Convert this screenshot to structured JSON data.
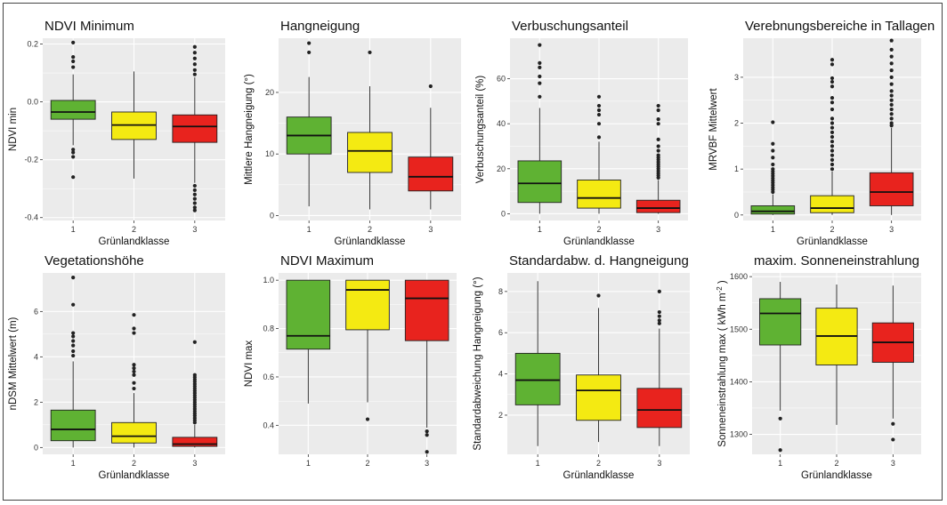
{
  "colors": {
    "k1": "#5fb233",
    "k2": "#f4ea12",
    "k3": "#e8231e",
    "panel_bg": "#ebebeb",
    "grid": "#ffffff"
  },
  "chart_data": [
    {
      "type": "box",
      "title": "NDVI Minimum",
      "xlabel": "Grünlandklasse",
      "ylabel": "NDVI min",
      "categories": [
        "1",
        "2",
        "3"
      ],
      "ylim": [
        -0.41,
        0.22
      ],
      "yticks": [
        -0.4,
        -0.2,
        0.0,
        0.2
      ],
      "yticklabels": [
        "-0.4",
        "-0.2",
        "0.0",
        "0.2"
      ],
      "boxes": [
        {
          "whisker_low": -0.15,
          "q1": -0.06,
          "median": -0.035,
          "q3": 0.005,
          "whisker_high": 0.095,
          "outliers": [
            0.205,
            0.155,
            0.14,
            0.12,
            -0.165,
            -0.175,
            -0.19,
            -0.26
          ]
        },
        {
          "whisker_low": -0.265,
          "q1": -0.13,
          "median": -0.08,
          "q3": -0.035,
          "whisker_high": 0.105,
          "outliers": []
        },
        {
          "whisker_low": -0.28,
          "q1": -0.14,
          "median": -0.085,
          "q3": -0.045,
          "whisker_high": 0.085,
          "outliers": [
            0.19,
            0.17,
            0.15,
            0.13,
            0.11,
            0.095,
            -0.29,
            -0.305,
            -0.32,
            -0.335,
            -0.35,
            -0.365,
            -0.375
          ]
        }
      ]
    },
    {
      "type": "box",
      "title": "Hangneigung",
      "xlabel": "Grünlandklasse",
      "ylabel": "Mittlere Hangneigung (°)",
      "categories": [
        "1",
        "2",
        "3"
      ],
      "ylim": [
        -0.8,
        28.8
      ],
      "yticks": [
        0,
        10,
        20
      ],
      "yticklabels": [
        "0",
        "10",
        "20"
      ],
      "boxes": [
        {
          "whisker_low": 1.5,
          "q1": 10.0,
          "median": 13.0,
          "q3": 16.0,
          "whisker_high": 22.5,
          "outliers": [
            28.0,
            26.5
          ]
        },
        {
          "whisker_low": 1.0,
          "q1": 7.0,
          "median": 10.5,
          "q3": 13.5,
          "whisker_high": 21.0,
          "outliers": [
            26.5
          ]
        },
        {
          "whisker_low": 1.0,
          "q1": 4.0,
          "median": 6.3,
          "q3": 9.5,
          "whisker_high": 17.5,
          "outliers": [
            21.0
          ]
        }
      ]
    },
    {
      "type": "box",
      "title": "Verbuschungsanteil",
      "xlabel": "Grünlandklasse",
      "ylabel": "Verbuschungsanteil (%)",
      "categories": [
        "1",
        "2",
        "3"
      ],
      "ylim": [
        -3,
        78
      ],
      "yticks": [
        0,
        20,
        40,
        60
      ],
      "yticklabels": [
        "0",
        "20",
        "40",
        "60"
      ],
      "boxes": [
        {
          "whisker_low": 0,
          "q1": 5.0,
          "median": 13.5,
          "q3": 23.5,
          "whisker_high": 47.0,
          "outliers": [
            75.0,
            67.0,
            65.0,
            61.0,
            58.0,
            52.0
          ]
        },
        {
          "whisker_low": 0,
          "q1": 2.5,
          "median": 7.0,
          "q3": 15.0,
          "whisker_high": 32.0,
          "outliers": [
            52.0,
            48.0,
            46.0,
            44.0,
            40.0,
            34.0
          ]
        },
        {
          "whisker_low": 0,
          "q1": 0.5,
          "median": 2.5,
          "q3": 6.0,
          "whisker_high": 15.0,
          "outliers": [
            48.0,
            46.0,
            42.0,
            40.0,
            33.0,
            30.0,
            28.0,
            26.0,
            25.0,
            24.0,
            23.0,
            22.0,
            21.0,
            20.0,
            19.0,
            18.0,
            17.0,
            16.0
          ]
        }
      ]
    },
    {
      "type": "box",
      "title": "Verebnungsbereiche in Tallagen",
      "xlabel": "Grünlandklasse",
      "ylabel": "MRVBF Mittelwert",
      "categories": [
        "1",
        "2",
        "3"
      ],
      "ylim": [
        -0.12,
        3.85
      ],
      "yticks": [
        0,
        1,
        2,
        3
      ],
      "yticklabels": [
        "0",
        "1",
        "2",
        "3"
      ],
      "boxes": [
        {
          "whisker_low": 0,
          "q1": 0.02,
          "median": 0.08,
          "q3": 0.2,
          "whisker_high": 0.45,
          "outliers": [
            2.02,
            1.55,
            1.4,
            1.25,
            1.1,
            1.0,
            0.95,
            0.9,
            0.85,
            0.8,
            0.75,
            0.7,
            0.65,
            0.6,
            0.55,
            0.5
          ]
        },
        {
          "whisker_low": 0,
          "q1": 0.05,
          "median": 0.15,
          "q3": 0.42,
          "whisker_high": 0.95,
          "outliers": [
            3.38,
            3.28,
            2.98,
            2.9,
            2.8,
            2.55,
            2.45,
            2.3,
            2.1,
            2.0,
            1.9,
            1.8,
            1.7,
            1.6,
            1.5,
            1.4,
            1.3,
            1.2,
            1.1,
            1.0
          ]
        },
        {
          "whisker_low": 0,
          "q1": 0.2,
          "median": 0.5,
          "q3": 0.92,
          "whisker_high": 1.9,
          "outliers": [
            3.8,
            3.6,
            3.45,
            3.3,
            3.15,
            3.0,
            2.85,
            2.7,
            2.6,
            2.5,
            2.4,
            2.3,
            2.2,
            2.1,
            2.0,
            1.95
          ]
        }
      ]
    },
    {
      "type": "box",
      "title": "Vegetationshöhe",
      "xlabel": "Grünlandklasse",
      "ylabel": "nDSM Mittelwert (m)",
      "categories": [
        "1",
        "2",
        "3"
      ],
      "ylim": [
        -0.3,
        7.7
      ],
      "yticks": [
        0,
        2,
        4,
        6
      ],
      "yticklabels": [
        "0",
        "2",
        "4",
        "6"
      ],
      "boxes": [
        {
          "whisker_low": 0,
          "q1": 0.3,
          "median": 0.8,
          "q3": 1.65,
          "whisker_high": 3.8,
          "outliers": [
            7.5,
            6.3,
            5.05,
            4.9,
            4.7,
            4.5,
            4.25,
            4.05
          ]
        },
        {
          "whisker_low": 0,
          "q1": 0.2,
          "median": 0.5,
          "q3": 1.1,
          "whisker_high": 2.4,
          "outliers": [
            5.85,
            5.25,
            5.05,
            3.65,
            3.5,
            3.35,
            3.2,
            2.85,
            2.6
          ]
        },
        {
          "whisker_low": 0,
          "q1": 0.05,
          "median": 0.15,
          "q3": 0.45,
          "whisker_high": 1.0,
          "outliers": [
            4.65,
            3.2,
            3.1,
            3.0,
            2.9,
            2.8,
            2.7,
            2.6,
            2.5,
            2.4,
            2.3,
            2.2,
            2.1,
            2.0,
            1.9,
            1.8,
            1.7,
            1.6,
            1.5,
            1.4,
            1.3,
            1.2,
            1.1
          ]
        }
      ]
    },
    {
      "type": "box",
      "title": "NDVI Maximum",
      "xlabel": "",
      "ylabel": "NDVI max",
      "categories": [
        "1",
        "2",
        "3"
      ],
      "ylim": [
        0.28,
        1.03
      ],
      "yticks": [
        0.4,
        0.6,
        0.8,
        1.0
      ],
      "yticklabels": [
        "0.4",
        "0.6",
        "0.8",
        "1.0"
      ],
      "boxes": [
        {
          "whisker_low": 0.49,
          "q1": 0.715,
          "median": 0.77,
          "q3": 1.0,
          "whisker_high": 1.0,
          "outliers": []
        },
        {
          "whisker_low": 0.495,
          "q1": 0.795,
          "median": 0.96,
          "q3": 1.0,
          "whisker_high": 1.0,
          "outliers": [
            0.425
          ]
        },
        {
          "whisker_low": 0.39,
          "q1": 0.75,
          "median": 0.925,
          "q3": 1.0,
          "whisker_high": 1.0,
          "outliers": [
            0.375,
            0.36,
            0.29
          ]
        }
      ]
    },
    {
      "type": "box",
      "title": "Standardabw. d. Hangneigung",
      "xlabel": "Grünlandklasse",
      "ylabel": "Standardabweichung Hangneigung (°)",
      "categories": [
        "1",
        "2",
        "3"
      ],
      "ylim": [
        0.1,
        8.9
      ],
      "yticks": [
        2,
        4,
        6,
        8
      ],
      "yticklabels": [
        "2",
        "4",
        "6",
        "8"
      ],
      "boxes": [
        {
          "whisker_low": 0.5,
          "q1": 2.5,
          "median": 3.7,
          "q3": 5.0,
          "whisker_high": 8.5,
          "outliers": []
        },
        {
          "whisker_low": 0.7,
          "q1": 1.75,
          "median": 3.2,
          "q3": 3.95,
          "whisker_high": 7.2,
          "outliers": [
            7.8
          ]
        },
        {
          "whisker_low": 0.5,
          "q1": 1.4,
          "median": 2.25,
          "q3": 3.3,
          "whisker_high": 6.2,
          "outliers": [
            8.0,
            7.0,
            6.8,
            6.6,
            6.45
          ]
        }
      ]
    },
    {
      "type": "box",
      "title": "maxim. Sonneneinstrahlung",
      "xlabel": "Grünlandklasse",
      "ylabel": "Sonneneinstrahlung max ( kWh m",
      "ylabel_sup": "-2",
      "ylabel_end": " )",
      "categories": [
        "1",
        "2",
        "3"
      ],
      "ylim": [
        1262,
        1607
      ],
      "yticks": [
        1300,
        1400,
        1500,
        1600
      ],
      "yticklabels": [
        "1300",
        "1400",
        "1500",
        "1600"
      ],
      "boxes": [
        {
          "whisker_low": 1345,
          "q1": 1470,
          "median": 1530,
          "q3": 1558,
          "whisker_high": 1590,
          "outliers": [
            1330,
            1270
          ]
        },
        {
          "whisker_low": 1318,
          "q1": 1432,
          "median": 1487,
          "q3": 1540,
          "whisker_high": 1585,
          "outliers": []
        },
        {
          "whisker_low": 1330,
          "q1": 1437,
          "median": 1475,
          "q3": 1512,
          "whisker_high": 1583,
          "outliers": [
            1320,
            1290
          ]
        }
      ]
    }
  ]
}
